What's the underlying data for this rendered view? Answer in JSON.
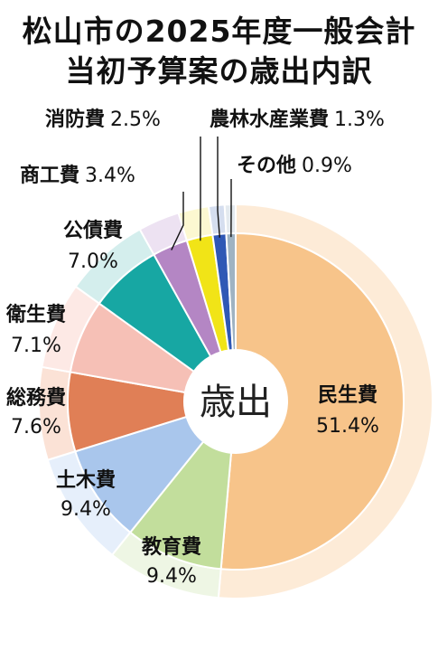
{
  "title_line1": "松山市の2025年度一般会計",
  "title_line2": "当初予算案の歳出内訳",
  "center_label": "歳出",
  "chart_data": {
    "type": "pie",
    "title": "松山市の2025年度一般会計 当初予算案の歳出内訳",
    "unit": "%",
    "slices": [
      {
        "label": "民生費",
        "value": 51.4,
        "display": "51.4%",
        "color": "#f7c48a",
        "pale": "#fdebd7"
      },
      {
        "label": "教育費",
        "value": 9.4,
        "display": "9.4%",
        "color": "#c2de9c",
        "pale": "#eef6e4"
      },
      {
        "label": "土木費",
        "value": 9.4,
        "display": "9.4%",
        "color": "#a9c6ec",
        "pale": "#e6effb"
      },
      {
        "label": "総務費",
        "value": 7.6,
        "display": "7.6%",
        "color": "#e07f56",
        "pale": "#fbe2d6"
      },
      {
        "label": "衛生費",
        "value": 7.1,
        "display": "7.1%",
        "color": "#f6c0b6",
        "pale": "#fde9e5"
      },
      {
        "label": "公債費",
        "value": 7.0,
        "display": "7.0%",
        "color": "#17a7a3",
        "pale": "#d4eeed"
      },
      {
        "label": "商工費",
        "value": 3.4,
        "display": "3.4%",
        "color": "#b486c4",
        "pale": "#ede2f2"
      },
      {
        "label": "消防費",
        "value": 2.5,
        "display": "2.5%",
        "color": "#f1e417",
        "pale": "#fcf8d1"
      },
      {
        "label": "農林水産業費",
        "value": 1.3,
        "display": "1.3%",
        "color": "#2f58b5",
        "pale": "#d5deef"
      },
      {
        "label": "その他",
        "value": 0.9,
        "display": "0.9%",
        "color": "#9fb3c2",
        "pale": "#e4eaef"
      }
    ]
  }
}
